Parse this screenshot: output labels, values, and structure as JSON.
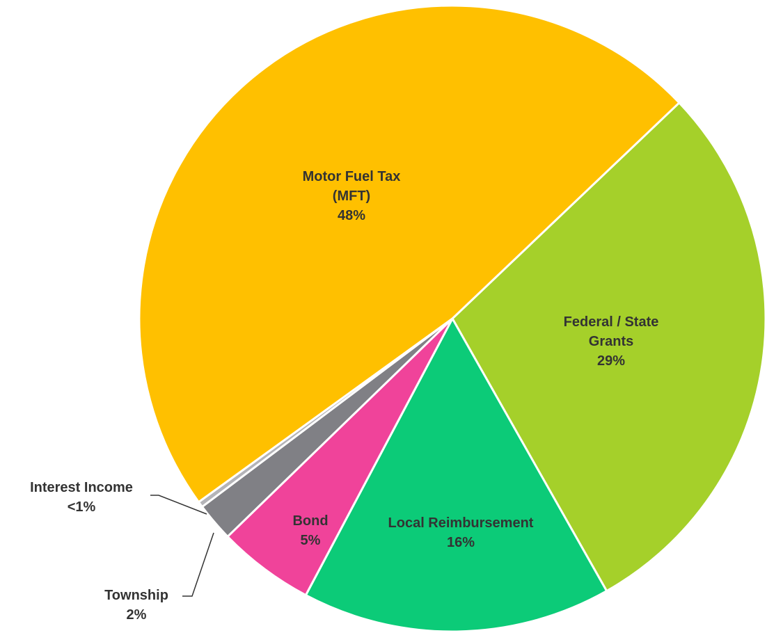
{
  "chart_data": {
    "type": "pie",
    "categories": [
      "Federal / State Grants",
      "Local Reimbursement",
      "Bond",
      "Township",
      "Interest Income",
      "Motor Fuel Tax (MFT)"
    ],
    "values": [
      29,
      16,
      5,
      2,
      0.3,
      48
    ],
    "value_labels": [
      "29%",
      "16%",
      "5%",
      "2%",
      "<1%",
      "48%"
    ],
    "colors": [
      "#a5d02a",
      "#0ccb78",
      "#f0439a",
      "#808085",
      "#b4b4b8",
      "#ffc000"
    ]
  }
}
